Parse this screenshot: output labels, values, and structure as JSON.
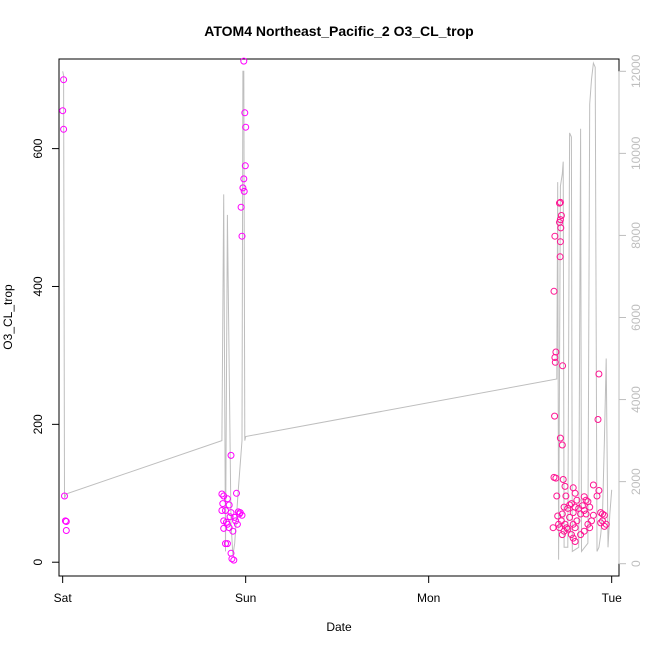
{
  "chart_data": {
    "type": "scatter",
    "title": "ATOM4 Northeast_Pacific_2 O3_CL_trop",
    "xlabel": "Date",
    "ylabel": "O3_CL_trop",
    "x_tick_labels": [
      "Sat",
      "Sun",
      "Mon",
      "Tue"
    ],
    "x_ticks_days": [
      0,
      1,
      2,
      3
    ],
    "xlim_days": [
      -0.02,
      3.04
    ],
    "ylim": [
      -20,
      730
    ],
    "y_ticks": [
      0,
      200,
      400,
      600
    ],
    "y_tick_labels": [
      "0",
      "200",
      "400",
      "600"
    ],
    "y2_lim": [
      -300,
      12300
    ],
    "y2_ticks": [
      0,
      2000,
      4000,
      6000,
      8000,
      10000,
      12000
    ],
    "y2_tick_labels": [
      "0",
      "2000",
      "4000",
      "6000",
      "8000",
      "10000",
      "12000"
    ],
    "colors": {
      "points_main": "#ff00ff",
      "points_alt": "#ff1493",
      "line": "#bebebe",
      "axis": "#000000",
      "right_axis": "#bebebe"
    },
    "series": [
      {
        "kind": "points",
        "axis": "left",
        "points": [
          [
            0.005,
            700
          ],
          [
            0.0,
            655
          ],
          [
            0.005,
            628
          ],
          [
            0.01,
            96
          ],
          [
            0.015,
            60
          ],
          [
            0.02,
            59
          ],
          [
            0.02,
            46
          ],
          [
            0.87,
            99
          ],
          [
            0.88,
            96
          ],
          [
            0.875,
            85
          ],
          [
            0.89,
            75
          ],
          [
            0.87,
            75
          ],
          [
            0.9,
            92
          ],
          [
            0.91,
            83
          ],
          [
            0.92,
            72
          ],
          [
            0.915,
            66
          ],
          [
            0.88,
            60
          ],
          [
            0.895,
            58
          ],
          [
            0.9,
            55
          ],
          [
            0.91,
            50
          ],
          [
            0.88,
            49
          ],
          [
            0.93,
            45
          ],
          [
            0.9,
            27
          ],
          [
            0.89,
            27
          ],
          [
            0.92,
            13
          ],
          [
            0.925,
            5
          ],
          [
            0.935,
            3
          ],
          [
            0.92,
            155
          ],
          [
            0.95,
            100
          ],
          [
            0.96,
            73
          ],
          [
            0.965,
            70
          ],
          [
            0.94,
            65
          ],
          [
            0.945,
            60
          ],
          [
            0.955,
            55
          ],
          [
            0.97,
            72
          ],
          [
            0.98,
            68
          ],
          [
            0.99,
            727
          ],
          [
            0.995,
            652
          ],
          [
            1.0,
            631
          ],
          [
            0.998,
            575
          ],
          [
            0.99,
            556
          ],
          [
            0.985,
            543
          ],
          [
            0.992,
            538
          ],
          [
            0.975,
            515
          ],
          [
            0.98,
            473
          ]
        ]
      },
      {
        "kind": "points",
        "axis": "left",
        "points": [
          [
            2.69,
            473
          ],
          [
            2.685,
            393
          ],
          [
            2.695,
            305
          ],
          [
            2.69,
            297
          ],
          [
            2.692,
            290
          ],
          [
            2.688,
            212
          ],
          [
            2.685,
            123
          ],
          [
            2.695,
            122
          ],
          [
            2.7,
            96
          ],
          [
            2.705,
            67
          ],
          [
            2.71,
            55
          ],
          [
            2.715,
            50
          ],
          [
            2.68,
            50
          ],
          [
            2.72,
            180
          ],
          [
            2.73,
            170
          ],
          [
            2.735,
            120
          ],
          [
            2.745,
            110
          ],
          [
            2.75,
            96
          ],
          [
            2.74,
            80
          ],
          [
            2.76,
            78
          ],
          [
            2.73,
            70
          ],
          [
            2.725,
            60
          ],
          [
            2.745,
            55
          ],
          [
            2.755,
            50
          ],
          [
            2.74,
            45
          ],
          [
            2.73,
            40
          ],
          [
            2.715,
            521
          ],
          [
            2.72,
            522
          ],
          [
            2.725,
            503
          ],
          [
            2.72,
            497
          ],
          [
            2.715,
            493
          ],
          [
            2.722,
            485
          ],
          [
            2.72,
            465
          ],
          [
            2.718,
            443
          ],
          [
            2.732,
            285
          ],
          [
            2.79,
            108
          ],
          [
            2.8,
            100
          ],
          [
            2.81,
            90
          ],
          [
            2.78,
            85
          ],
          [
            2.77,
            83
          ],
          [
            2.8,
            80
          ],
          [
            2.82,
            78
          ],
          [
            2.79,
            72
          ],
          [
            2.83,
            70
          ],
          [
            2.77,
            65
          ],
          [
            2.81,
            60
          ],
          [
            2.79,
            55
          ],
          [
            2.8,
            50
          ],
          [
            2.76,
            48
          ],
          [
            2.78,
            40
          ],
          [
            2.79,
            35
          ],
          [
            2.8,
            30
          ],
          [
            2.85,
            95
          ],
          [
            2.86,
            90
          ],
          [
            2.87,
            88
          ],
          [
            2.84,
            82
          ],
          [
            2.88,
            80
          ],
          [
            2.85,
            75
          ],
          [
            2.86,
            70
          ],
          [
            2.9,
            68
          ],
          [
            2.89,
            60
          ],
          [
            2.87,
            55
          ],
          [
            2.88,
            50
          ],
          [
            2.85,
            45
          ],
          [
            2.83,
            40
          ],
          [
            2.9,
            112
          ],
          [
            2.93,
            104
          ],
          [
            2.92,
            96
          ],
          [
            2.93,
            273
          ],
          [
            2.925,
            207
          ],
          [
            2.94,
            72
          ],
          [
            2.95,
            70
          ],
          [
            2.96,
            68
          ],
          [
            2.95,
            60
          ],
          [
            2.94,
            57
          ],
          [
            2.97,
            55
          ],
          [
            2.96,
            52
          ]
        ]
      },
      {
        "kind": "line",
        "axis": "right",
        "points": [
          [
            0.0,
            12000
          ],
          [
            0.005,
            11900
          ],
          [
            0.01,
            1600
          ],
          [
            0.02,
            1700
          ],
          [
            0.87,
            3000
          ],
          [
            0.88,
            9000
          ],
          [
            0.89,
            300
          ],
          [
            0.9,
            8500
          ],
          [
            0.92,
            1000
          ],
          [
            0.93,
            200
          ],
          [
            0.94,
            500
          ],
          [
            0.96,
            1800
          ],
          [
            0.98,
            3000
          ],
          [
            0.985,
            12000
          ],
          [
            0.99,
            12000
          ],
          [
            0.995,
            3000
          ],
          [
            1.0,
            3100
          ],
          [
            2.7,
            4500
          ],
          [
            2.705,
            9300
          ],
          [
            2.71,
            100
          ],
          [
            2.72,
            9200
          ],
          [
            2.73,
            9500
          ],
          [
            2.735,
            9800
          ],
          [
            2.74,
            400
          ],
          [
            2.76,
            400
          ],
          [
            2.77,
            10500
          ],
          [
            2.78,
            10400
          ],
          [
            2.785,
            300
          ],
          [
            2.82,
            400
          ],
          [
            2.83,
            10600
          ],
          [
            2.835,
            300
          ],
          [
            2.87,
            500
          ],
          [
            2.88,
            11200
          ],
          [
            2.89,
            11800
          ],
          [
            2.9,
            12200
          ],
          [
            2.91,
            12100
          ],
          [
            2.92,
            300
          ],
          [
            2.93,
            400
          ],
          [
            2.94,
            700
          ],
          [
            2.95,
            1200
          ],
          [
            2.96,
            3000
          ],
          [
            2.97,
            5000
          ],
          [
            2.98,
            400
          ],
          [
            2.99,
            1200
          ],
          [
            3.0,
            1800
          ]
        ]
      }
    ]
  }
}
